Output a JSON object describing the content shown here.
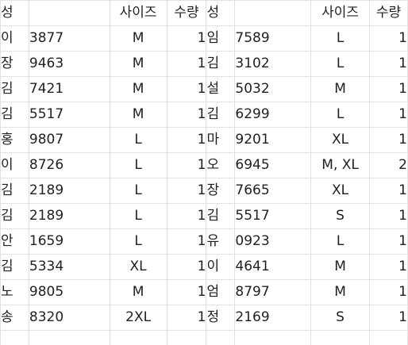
{
  "header": {
    "left": {
      "surname": "성",
      "number": "",
      "size": "사이즈",
      "qty": "수량"
    },
    "right": {
      "surname": "성",
      "number": "",
      "size": "사이즈",
      "qty": "수량"
    }
  },
  "rows": [
    {
      "left": {
        "surname": "이",
        "number": "3877",
        "size": "M",
        "qty": "1"
      },
      "right": {
        "surname": "임",
        "number": "7589",
        "size": "L",
        "qty": "1"
      }
    },
    {
      "left": {
        "surname": "장",
        "number": "9463",
        "size": "M",
        "qty": "1"
      },
      "right": {
        "surname": "김",
        "number": "3102",
        "size": "L",
        "qty": "1"
      }
    },
    {
      "left": {
        "surname": "김",
        "number": "7421",
        "size": "M",
        "qty": "1"
      },
      "right": {
        "surname": "설",
        "number": "5032",
        "size": "M",
        "qty": "1"
      }
    },
    {
      "left": {
        "surname": "김",
        "number": "5517",
        "size": "M",
        "qty": "1"
      },
      "right": {
        "surname": "김",
        "number": "6299",
        "size": "L",
        "qty": "1"
      }
    },
    {
      "left": {
        "surname": "홍",
        "number": "9807",
        "size": "L",
        "qty": "1"
      },
      "right": {
        "surname": "마",
        "number": "9201",
        "size": "XL",
        "qty": "1"
      }
    },
    {
      "left": {
        "surname": "이",
        "number": "8726",
        "size": "L",
        "qty": "1"
      },
      "right": {
        "surname": "오",
        "number": "6945",
        "size": "M, XL",
        "qty": "2"
      }
    },
    {
      "left": {
        "surname": "김",
        "number": "2189",
        "size": "L",
        "qty": "1"
      },
      "right": {
        "surname": "장",
        "number": "7665",
        "size": "XL",
        "qty": "1"
      }
    },
    {
      "left": {
        "surname": "김",
        "number": "2189",
        "size": "L",
        "qty": "1"
      },
      "right": {
        "surname": "김",
        "number": "5517",
        "size": "S",
        "qty": "1"
      }
    },
    {
      "left": {
        "surname": "안",
        "number": "1659",
        "size": "L",
        "qty": "1"
      },
      "right": {
        "surname": "유",
        "number": "0923",
        "size": "L",
        "qty": "1"
      }
    },
    {
      "left": {
        "surname": "김",
        "number": "5334",
        "size": "XL",
        "qty": "1"
      },
      "right": {
        "surname": "이",
        "number": "4641",
        "size": "M",
        "qty": "1"
      }
    },
    {
      "left": {
        "surname": "노",
        "number": "9805",
        "size": "M",
        "qty": "1"
      },
      "right": {
        "surname": "엄",
        "number": "8797",
        "size": "M",
        "qty": "1"
      }
    },
    {
      "left": {
        "surname": "송",
        "number": "8320",
        "size": "2XL",
        "qty": "1"
      },
      "right": {
        "surname": "정",
        "number": "2169",
        "size": "S",
        "qty": "1"
      }
    },
    {
      "left": {
        "surname": "",
        "number": "",
        "size": "",
        "qty": ""
      },
      "right": {
        "surname": "",
        "number": "",
        "size": "",
        "qty": ""
      }
    }
  ]
}
